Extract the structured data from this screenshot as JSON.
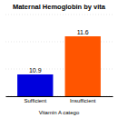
{
  "chart_data": {
    "type": "bar",
    "title": "Maternal Hemoglobin by vita",
    "categories": [
      "Sufficient",
      "Insufficient"
    ],
    "values": [
      10.9,
      11.6
    ],
    "colors": [
      "#0000dd",
      "#ff5500"
    ],
    "xlabel": "Vitamin A catego",
    "ylim": [
      10.5,
      12.0
    ],
    "yticks": [
      10.5,
      11,
      11.5,
      12
    ],
    "grid": true,
    "data_labels": true,
    "tick_labels": "x"
  }
}
